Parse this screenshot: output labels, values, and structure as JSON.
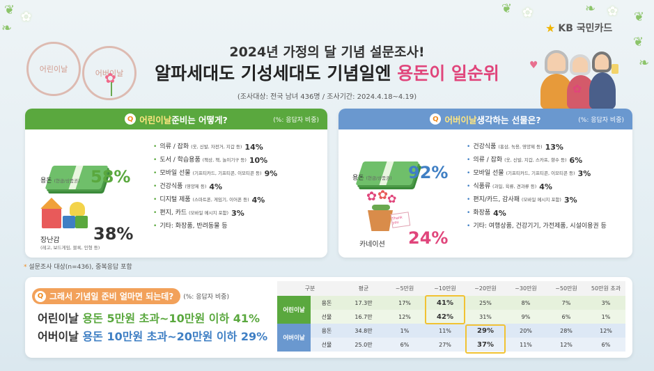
{
  "brand": {
    "logo_mark": "★",
    "name": "KB 국민카드"
  },
  "header": {
    "title_line1": "2024년 가정의 달 기념 설문조사!",
    "title_line2_prefix": "알파세대도 기성세대도 기념일엔 ",
    "title_line2_highlight": "용돈이 일순위",
    "survey_info": "(조사대상: 전국 남녀 436명 / 조사기간: 2024.4.18~4.19)",
    "stamp_left": "어린이날",
    "stamp_right": "어버이날"
  },
  "children_day": {
    "q_prefix": "어린이날",
    "q_suffix": " 준비는 어떻게?",
    "note": "(%: 응답자 비중)",
    "big_items": [
      {
        "label": "용돈",
        "sub": "(현금/상품권)",
        "value": "58%"
      },
      {
        "label": "장난감",
        "sub": "(레고, 보드게임, 블록, 인형 등)",
        "value": "38%"
      }
    ],
    "list": [
      {
        "name": "의류 / 잡화",
        "sub": "(옷, 신발, 자전거, 지갑 등)",
        "value": "14%"
      },
      {
        "name": "도서 / 학습용품",
        "sub": "(책상, 책, 놀이기구 등)",
        "value": "10%"
      },
      {
        "name": "모바일 선물",
        "sub": "(기프티카드, 기프티콘, 이모티콘 등)",
        "value": "9%"
      },
      {
        "name": "건강식품",
        "sub": "(영양제 등)",
        "value": "4%"
      },
      {
        "name": "디지털 제품",
        "sub": "(스마트폰, 게임기, 이어폰 등)",
        "value": "4%"
      },
      {
        "name": "편지, 카드",
        "sub": "(모바일 메시지 포함)",
        "value": "3%"
      },
      {
        "name": "기타: 화장품, 반려동물 등",
        "sub": "",
        "value": ""
      }
    ]
  },
  "parents_day": {
    "q_prefix": "어버이날",
    "q_suffix": " 생각하는 선물은?",
    "note": "(%: 응답자 비중)",
    "big_items": [
      {
        "label": "용돈",
        "sub": "(현금/상품권)",
        "value": "92%"
      },
      {
        "label": "카네이션",
        "sub": "",
        "value": "24%"
      }
    ],
    "card_text": "Thank you",
    "list": [
      {
        "name": "건강식품",
        "sub": "(홍삼, 녹용, 영양제 등)",
        "value": "13%"
      },
      {
        "name": "의류 / 잡화",
        "sub": "(옷, 신발, 지갑, 스카프, 향수 등)",
        "value": "6%"
      },
      {
        "name": "모바일 선물",
        "sub": "(기프티카드, 기프티콘, 이모티콘 등)",
        "value": "3%"
      },
      {
        "name": "식품류",
        "sub": "(과일, 육류, 견과류 등)",
        "value": "4%"
      },
      {
        "name": "편지/카드, 감사패",
        "sub": "(모바일 메시지 포함)",
        "value": "3%"
      },
      {
        "name": "화장품",
        "sub": "",
        "value": "4%"
      },
      {
        "name": "기타: 여행상품, 건강기기, 가전제품, 시설이용권 등",
        "sub": "",
        "value": ""
      }
    ]
  },
  "footnote": {
    "mark": "*",
    "text": "설문조사 대상(n=436), 중복응답 포함"
  },
  "budget": {
    "q_text": "그래서 기념일 준비 얼마면 되는데?",
    "note": "(%: 응답자 비중)",
    "result1": {
      "day": "어린이날 ",
      "kind": "용돈",
      "range": " 5만원 초과~10만원 이하 ",
      "pct": "41%"
    },
    "result2": {
      "day": "어버이날 ",
      "kind": "용돈",
      "range": " 10만원 초과~20만원 이하 ",
      "pct": "29%"
    },
    "table": {
      "headers": [
        "구분",
        "",
        "평균",
        "~5만원",
        "~10만원",
        "~20만원",
        "~30만원",
        "~50만원",
        "50만원 초과"
      ],
      "groups": [
        {
          "name": "어린이날",
          "rows": [
            {
              "type": "용돈",
              "cells": [
                "17.3만",
                "17%",
                "41%",
                "25%",
                "8%",
                "7%",
                "3%"
              ]
            },
            {
              "type": "선물",
              "cells": [
                "16.7만",
                "12%",
                "42%",
                "31%",
                "9%",
                "6%",
                "1%"
              ]
            }
          ]
        },
        {
          "name": "어버이날",
          "rows": [
            {
              "type": "용돈",
              "cells": [
                "34.8만",
                "1%",
                "11%",
                "29%",
                "20%",
                "28%",
                "12%"
              ]
            },
            {
              "type": "선물",
              "cells": [
                "25.0만",
                "6%",
                "27%",
                "37%",
                "11%",
                "12%",
                "6%"
              ]
            }
          ]
        }
      ]
    }
  },
  "colors": {
    "green": "#5aa83e",
    "blue": "#6a98cf",
    "pink": "#e0457b",
    "orange": "#f2a15a",
    "highlight": "#f1c232"
  }
}
